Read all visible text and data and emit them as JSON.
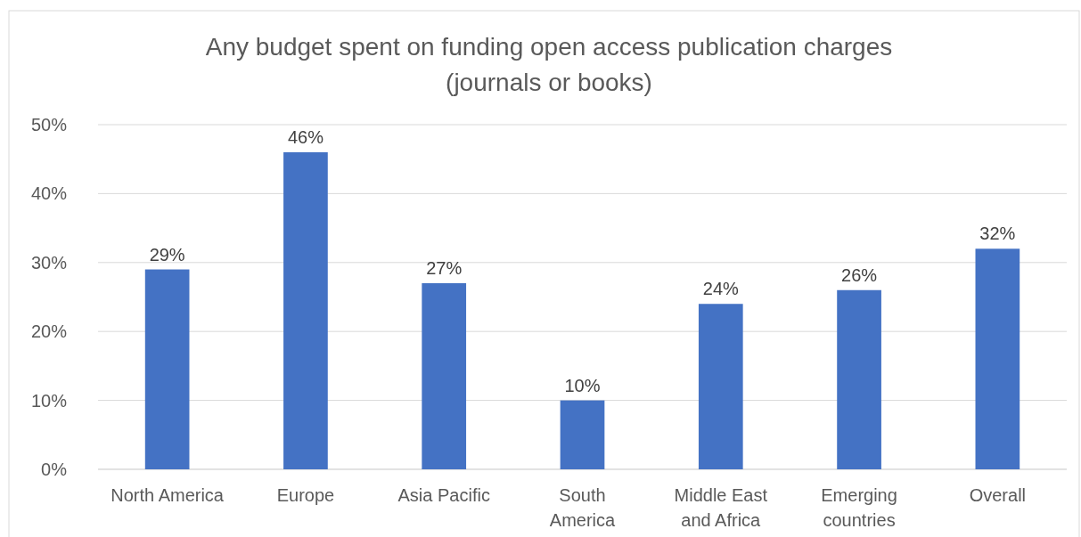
{
  "chart_data": {
    "type": "bar",
    "title": "Any budget spent on funding open access publication charges\n(journals or books)",
    "categories": [
      "North America",
      "Europe",
      "Asia Pacific",
      "South\nAmerica",
      "Middle East\nand Africa",
      "Emerging\ncountries",
      "Overall"
    ],
    "values": [
      29,
      46,
      27,
      10,
      24,
      26,
      32
    ],
    "color": "#4472c4",
    "ylim": [
      0,
      50
    ],
    "yticks": [
      {
        "value": 0,
        "label": "0%"
      },
      {
        "value": 10,
        "label": "10%"
      },
      {
        "value": 20,
        "label": "20%"
      },
      {
        "value": 30,
        "label": "30%"
      },
      {
        "value": 40,
        "label": "40%"
      },
      {
        "value": 50,
        "label": "50%"
      }
    ],
    "grid": "y",
    "data_labels": true,
    "value_labels": [
      "29%",
      "46%",
      "27%",
      "10%",
      "24%",
      "26%",
      "32%"
    ]
  }
}
